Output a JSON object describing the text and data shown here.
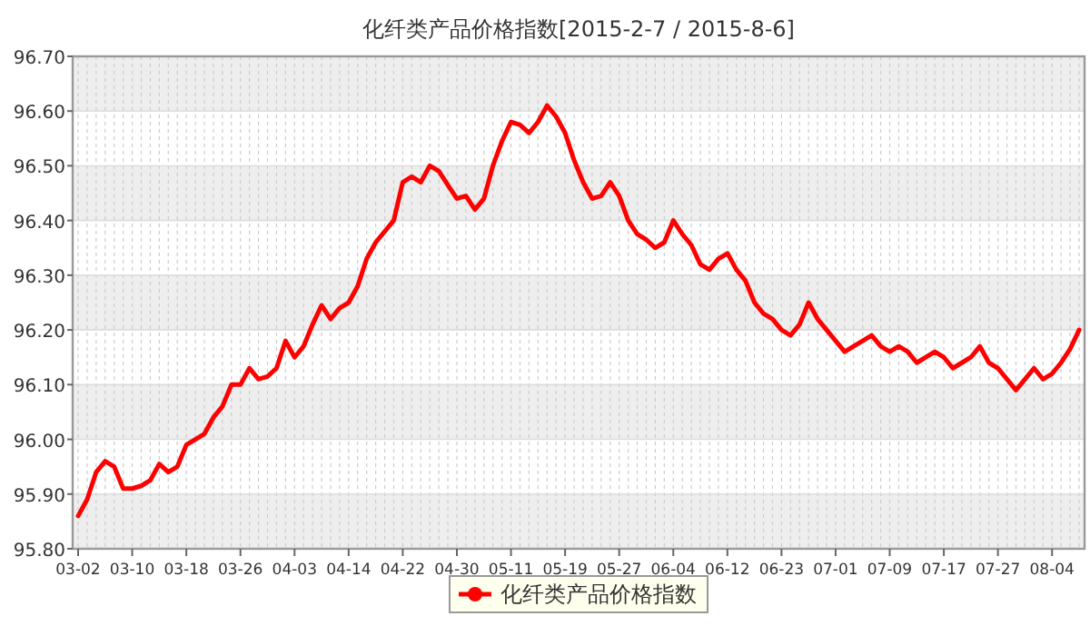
{
  "chart_data": {
    "type": "line",
    "title": "化纤类产品价格指数[2015-2-7 / 2015-8-6]",
    "categories": [
      "03-02",
      null,
      null,
      null,
      null,
      null,
      "03-10",
      null,
      null,
      null,
      null,
      null,
      "03-18",
      null,
      null,
      null,
      null,
      null,
      "03-26",
      null,
      null,
      null,
      null,
      null,
      "04-03",
      null,
      null,
      null,
      null,
      null,
      "04-14",
      null,
      null,
      null,
      null,
      null,
      "04-22",
      null,
      null,
      null,
      null,
      null,
      "04-30",
      null,
      null,
      null,
      null,
      null,
      "05-11",
      null,
      null,
      null,
      null,
      null,
      "05-19",
      null,
      null,
      null,
      null,
      null,
      "05-27",
      null,
      null,
      null,
      null,
      null,
      "06-04",
      null,
      null,
      null,
      null,
      null,
      "06-12",
      null,
      null,
      null,
      null,
      null,
      "06-23",
      null,
      null,
      null,
      null,
      null,
      "07-01",
      null,
      null,
      null,
      null,
      null,
      "07-09",
      null,
      null,
      null,
      null,
      null,
      "07-17",
      null,
      null,
      null,
      null,
      null,
      "07-27",
      null,
      null,
      null,
      null,
      null,
      "08-04",
      null,
      null,
      null
    ],
    "series": [
      {
        "name": "化纤类产品价格指数",
        "color": "#ff0000",
        "values": [
          95.86,
          95.89,
          95.94,
          95.96,
          95.95,
          95.91,
          95.91,
          95.915,
          95.925,
          95.955,
          95.94,
          95.95,
          95.99,
          96.0,
          96.01,
          96.04,
          96.06,
          96.1,
          96.1,
          96.13,
          96.11,
          96.115,
          96.13,
          96.18,
          96.15,
          96.17,
          96.21,
          96.245,
          96.22,
          96.24,
          96.25,
          96.28,
          96.33,
          96.36,
          96.38,
          96.4,
          96.47,
          96.48,
          96.47,
          96.5,
          96.49,
          96.465,
          96.44,
          96.445,
          96.42,
          96.44,
          96.5,
          96.545,
          96.58,
          96.575,
          96.56,
          96.58,
          96.61,
          96.59,
          96.56,
          96.51,
          96.47,
          96.44,
          96.445,
          96.47,
          96.445,
          96.4,
          96.375,
          96.365,
          96.35,
          96.36,
          96.4,
          96.375,
          96.355,
          96.32,
          96.31,
          96.33,
          96.34,
          96.31,
          96.29,
          96.25,
          96.23,
          96.22,
          96.2,
          96.19,
          96.21,
          96.25,
          96.22,
          96.2,
          96.18,
          96.16,
          96.17,
          96.18,
          96.19,
          96.17,
          96.16,
          96.17,
          96.16,
          96.14,
          96.15,
          96.16,
          96.15,
          96.13,
          96.14,
          96.15,
          96.17,
          96.14,
          96.13,
          96.11,
          96.09,
          96.11,
          96.13,
          96.11,
          96.12,
          96.14,
          96.165,
          96.2
        ]
      }
    ],
    "ylim": [
      95.8,
      96.7
    ],
    "yticks": [
      {
        "value": 95.8,
        "label": "95.80"
      },
      {
        "value": 95.9,
        "label": "95.90"
      },
      {
        "value": 96.0,
        "label": "96.00"
      },
      {
        "value": 96.1,
        "label": "96.10"
      },
      {
        "value": 96.2,
        "label": "96.20"
      },
      {
        "value": 96.3,
        "label": "96.30"
      },
      {
        "value": 96.4,
        "label": "96.40"
      },
      {
        "value": 96.5,
        "label": "96.50"
      },
      {
        "value": 96.6,
        "label": "96.60"
      },
      {
        "value": 96.7,
        "label": "96.70"
      }
    ],
    "grid": true,
    "legend": "bottom",
    "line_style": "solid"
  }
}
